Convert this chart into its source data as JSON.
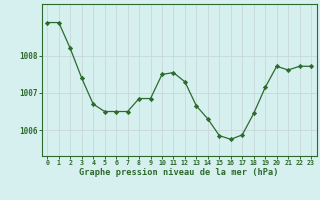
{
  "x": [
    0,
    1,
    2,
    3,
    4,
    5,
    6,
    7,
    8,
    9,
    10,
    11,
    12,
    13,
    14,
    15,
    16,
    17,
    18,
    19,
    20,
    21,
    22,
    23
  ],
  "y": [
    1008.9,
    1008.9,
    1008.2,
    1007.4,
    1006.7,
    1006.5,
    1006.5,
    1006.5,
    1006.85,
    1006.85,
    1007.5,
    1007.55,
    1007.3,
    1006.65,
    1006.3,
    1005.85,
    1005.75,
    1005.87,
    1006.45,
    1007.15,
    1007.72,
    1007.62,
    1007.72,
    1007.72
  ],
  "line_color": "#2d6a2d",
  "marker_color": "#2d6a2d",
  "bg_color": "#d6f0f0",
  "grid_color": "#c8d8d8",
  "xlabel": "Graphe pression niveau de la mer (hPa)",
  "xlabel_color": "#2d6a2d",
  "tick_color": "#2d6a2d",
  "ylim_min": 1005.3,
  "ylim_max": 1009.4,
  "yticks": [
    1006,
    1007,
    1008
  ],
  "xticks": [
    0,
    1,
    2,
    3,
    4,
    5,
    6,
    7,
    8,
    9,
    10,
    11,
    12,
    13,
    14,
    15,
    16,
    17,
    18,
    19,
    20,
    21,
    22,
    23
  ]
}
